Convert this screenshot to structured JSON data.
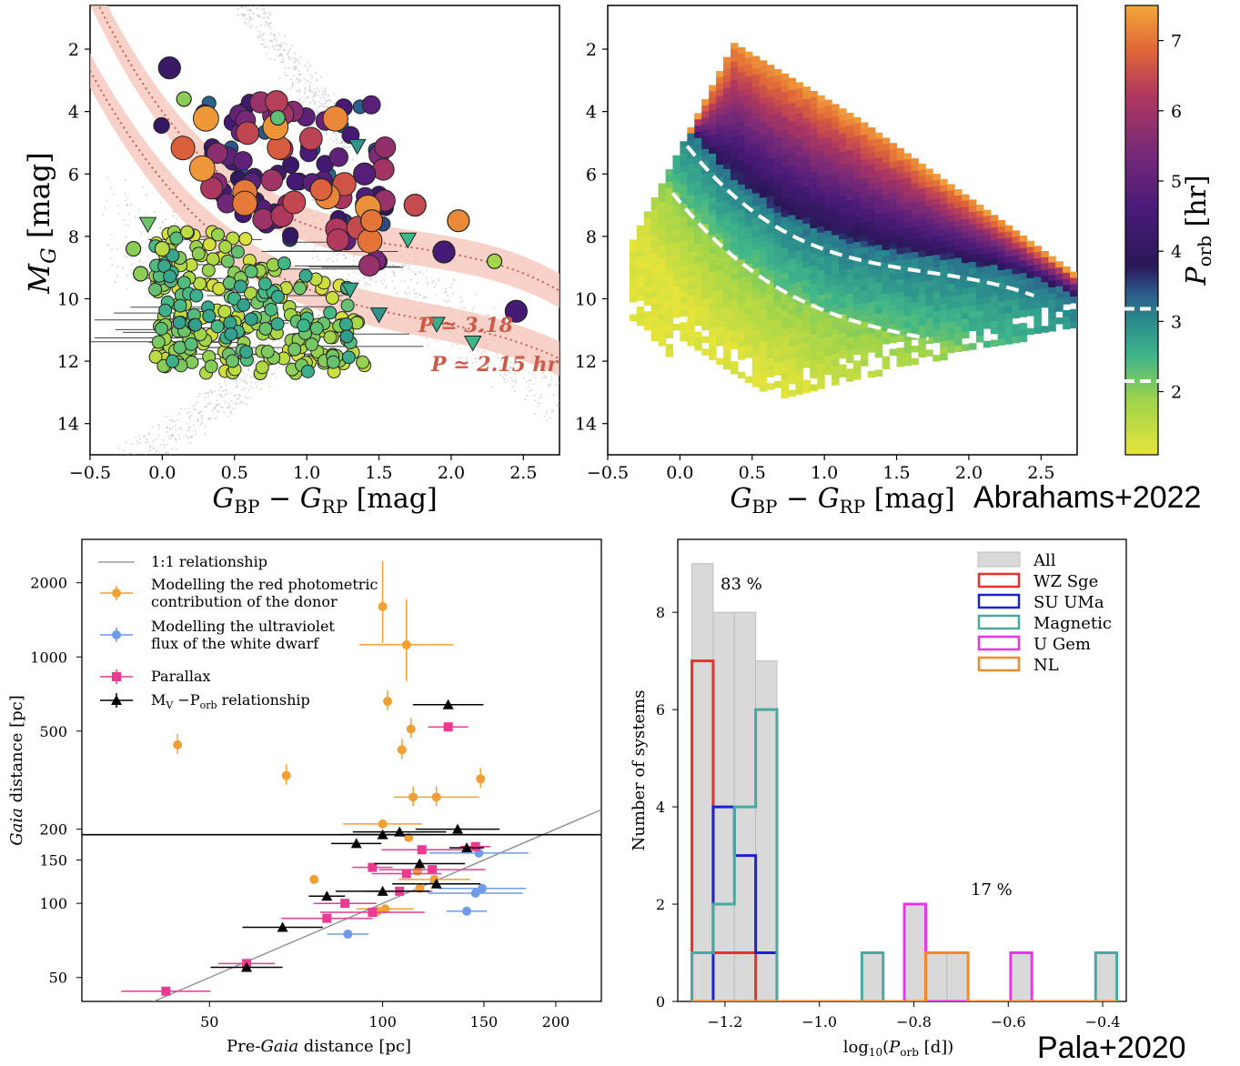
{
  "credits": {
    "top": "Abrahams+2022",
    "bottom": "Pala+2020"
  },
  "chart_data": [
    {
      "type": "scatter",
      "panel": "cmd-observed",
      "xlabel": "G_BP − G_RP [mag]",
      "ylabel": "M_G [mag]",
      "xlim": [
        -0.5,
        2.75
      ],
      "ylim": [
        15,
        0.6
      ],
      "xticks": [
        "−0.5",
        "0.0",
        "0.5",
        "1.0",
        "1.5",
        "2.0",
        "2.5"
      ],
      "yticks": [
        "2",
        "4",
        "6",
        "8",
        "10",
        "12",
        "14"
      ],
      "annotations": [
        "P ≃ 3.18",
        "P ≃ 2.15 hr"
      ],
      "colorscale": {
        "min": 1.1,
        "max": 7.5,
        "label": "P_orb [hr]"
      },
      "points_summary": "Cataclysmic variables coloured by orbital period, over grey Gaia background sequences; triangles are upper limits",
      "highlight_points": [
        {
          "x": 0.05,
          "y": 2.6,
          "p": 4.2
        },
        {
          "x": 0.15,
          "y": 3.6,
          "p": 2.0
        },
        {
          "x": 0.8,
          "y": 4.2,
          "p": 2.3
        },
        {
          "x": 1.1,
          "y": 6.5,
          "p": 6.8
        },
        {
          "x": 1.45,
          "y": 7.5,
          "p": 7.0
        },
        {
          "x": 1.75,
          "y": 7.0,
          "p": 6.5
        },
        {
          "x": 2.05,
          "y": 7.5,
          "p": 7.2
        },
        {
          "x": 1.95,
          "y": 8.5,
          "p": 4.5
        },
        {
          "x": 2.3,
          "y": 8.8,
          "p": 1.8
        },
        {
          "x": 2.45,
          "y": 10.4,
          "p": 4.5
        },
        {
          "x": 1.4,
          "y": 6.0,
          "p": 4.8
        },
        {
          "x": -0.15,
          "y": 9.2,
          "p": 2.0
        },
        {
          "x": -0.2,
          "y": 8.4,
          "p": 2.0
        },
        {
          "x": 0.0,
          "y": 8.4,
          "p": 1.6
        }
      ],
      "triangles": [
        {
          "x": -0.1,
          "y": 7.6,
          "p": 2.2
        },
        {
          "x": 1.35,
          "y": 5.1,
          "p": 2.9
        },
        {
          "x": 1.7,
          "y": 8.1,
          "p": 2.5
        },
        {
          "x": 1.9,
          "y": 10.8,
          "p": 2.6
        },
        {
          "x": 2.15,
          "y": 11.4,
          "p": 2.5
        },
        {
          "x": 1.3,
          "y": 9.7,
          "p": 2.7
        },
        {
          "x": 1.5,
          "y": 10.5,
          "p": 2.9
        }
      ]
    },
    {
      "type": "heatmap",
      "panel": "cmd-model",
      "xlabel": "G_BP − G_RP [mag]",
      "xlim": [
        -0.5,
        2.75
      ],
      "ylim": [
        15,
        0.6
      ],
      "xticks": [
        "−0.5",
        "0.0",
        "0.5",
        "1.0",
        "1.5",
        "2.0",
        "2.5"
      ],
      "yticks": [
        "2",
        "4",
        "6",
        "8",
        "10",
        "12",
        "14"
      ],
      "colorbar": {
        "label": "P_orb [hr]",
        "ticks": [
          2,
          3,
          4,
          5,
          6,
          7
        ],
        "min": 1.1,
        "max": 7.5,
        "marks": [
          2.15,
          3.18
        ]
      }
    },
    {
      "type": "scatter",
      "panel": "distance-comparison",
      "xlabel": "Pre-Gaia distance [pc]",
      "ylabel": "Gaia distance [pc]",
      "xscale": "log",
      "yscale": "log",
      "xlim": [
        30,
        240
      ],
      "ylim": [
        40,
        3000
      ],
      "xticks": [
        50,
        100,
        150,
        200
      ],
      "yticks": [
        50,
        100,
        150,
        200,
        500,
        1000,
        2000
      ],
      "hline": 190,
      "legend": [
        {
          "label": "1:1 relationship",
          "marker": "line",
          "color": "#888888"
        },
        {
          "label": "Modelling the red photometric",
          "label2": "contribution of the donor",
          "marker": "circle",
          "color": "#f0a035"
        },
        {
          "label": "Modelling the ultraviolet",
          "label2": "flux of the white dwarf",
          "marker": "circle",
          "color": "#6f9ce6"
        },
        {
          "label": "Parallax",
          "marker": "square",
          "color": "#ea3a91"
        },
        {
          "label": "M_V − P_orb relationship",
          "marker": "triangle",
          "color": "#000000"
        }
      ],
      "series": [
        {
          "name": "donor",
          "color": "#f0a035",
          "points": [
            [
              44,
              440
            ],
            [
              68,
              330
            ],
            [
              100,
              1600
            ],
            [
              102,
              660
            ],
            [
              110,
              1120
            ],
            [
              112,
              510
            ],
            [
              113,
              270
            ],
            [
              111,
              185
            ],
            [
              124,
              270
            ],
            [
              148,
              320
            ],
            [
              108,
              420
            ],
            [
              100,
              210
            ],
            [
              115,
              135
            ],
            [
              76,
              125
            ],
            [
              101,
              95
            ],
            [
              98,
              93
            ],
            [
              116,
              115
            ],
            [
              123,
              125
            ]
          ]
        },
        {
          "name": "white dwarf",
          "color": "#6f9ce6",
          "points": [
            [
              87,
              75
            ],
            [
              145,
              110
            ],
            [
              147,
              160
            ],
            [
              149,
              115
            ],
            [
              140,
              93
            ]
          ]
        },
        {
          "name": "parallax",
          "color": "#ea3a91",
          "points": [
            [
              42,
              44
            ],
            [
              58,
              57
            ],
            [
              80,
              87
            ],
            [
              86,
              100
            ],
            [
              96,
              92
            ],
            [
              96,
              140
            ],
            [
              107,
              112
            ],
            [
              110,
              132
            ],
            [
              117,
              165
            ],
            [
              122,
              137
            ],
            [
              130,
              520
            ],
            [
              145,
              170
            ]
          ]
        },
        {
          "name": "mv-porb",
          "color": "#000000",
          "points": [
            [
              58,
              55
            ],
            [
              67,
              80
            ],
            [
              80,
              107
            ],
            [
              90,
              175
            ],
            [
              100,
              190
            ],
            [
              107,
              195
            ],
            [
              116,
              145
            ],
            [
              124,
              120
            ],
            [
              130,
              640
            ],
            [
              135,
              200
            ],
            [
              140,
              168
            ],
            [
              100,
              112
            ]
          ]
        }
      ]
    },
    {
      "type": "bar",
      "panel": "period-histogram",
      "xlabel": "log10(P_orb [d])",
      "ylabel": "Number of systems",
      "xlim": [
        -1.3,
        -0.35
      ],
      "ylim": [
        0,
        9.5
      ],
      "xticks": [
        "−1.2",
        "−1.0",
        "−0.8",
        "−0.6",
        "−0.4"
      ],
      "yticks": [
        0,
        2,
        4,
        6,
        8
      ],
      "annotations": [
        "83 %",
        "17 %"
      ],
      "legend": [
        {
          "label": "All",
          "color": "#d9d9d9"
        },
        {
          "label": "WZ Sge",
          "color": "#e8302c"
        },
        {
          "label": "SU UMa",
          "color": "#1a22d6"
        },
        {
          "label": "Magnetic",
          "color": "#4aa8a0"
        },
        {
          "label": "U Gem",
          "color": "#ea35e6"
        },
        {
          "label": "NL",
          "color": "#f08a2a"
        }
      ],
      "bin_edges": [
        -1.27,
        -1.225,
        -1.18,
        -1.135,
        -1.09,
        -1.045,
        -1.0,
        -0.955,
        -0.91,
        -0.865,
        -0.82,
        -0.775,
        -0.73,
        -0.685,
        -0.64,
        -0.595,
        -0.55,
        -0.505,
        -0.46,
        -0.415,
        -0.37
      ],
      "series": [
        {
          "name": "All",
          "values": [
            9,
            8,
            8,
            7,
            0,
            0,
            0,
            0,
            1,
            0,
            2,
            1,
            1,
            0,
            0,
            1,
            0,
            0,
            0,
            1
          ]
        },
        {
          "name": "WZ Sge",
          "values": [
            7,
            1,
            1,
            0,
            0,
            0,
            0,
            0,
            0,
            0,
            0,
            0,
            0,
            0,
            0,
            0,
            0,
            0,
            0,
            0
          ]
        },
        {
          "name": "SU UMa",
          "values": [
            0,
            4,
            3,
            1,
            0,
            0,
            0,
            0,
            0,
            0,
            0,
            0,
            0,
            0,
            0,
            0,
            0,
            0,
            0,
            0
          ]
        },
        {
          "name": "Magnetic",
          "values": [
            1,
            2,
            4,
            6,
            0,
            0,
            0,
            0,
            1,
            0,
            0,
            0,
            0,
            0,
            0,
            0,
            0,
            0,
            0,
            1
          ]
        },
        {
          "name": "U Gem",
          "values": [
            0,
            0,
            0,
            0,
            0,
            0,
            0,
            0,
            0,
            0,
            2,
            0,
            0,
            0,
            0,
            1,
            0,
            0,
            0,
            0
          ]
        },
        {
          "name": "NL",
          "values": [
            0,
            0,
            0,
            0,
            0,
            0,
            0,
            0,
            0,
            0,
            0,
            1,
            1,
            0,
            0,
            0,
            0,
            0,
            0,
            0
          ]
        }
      ]
    }
  ]
}
